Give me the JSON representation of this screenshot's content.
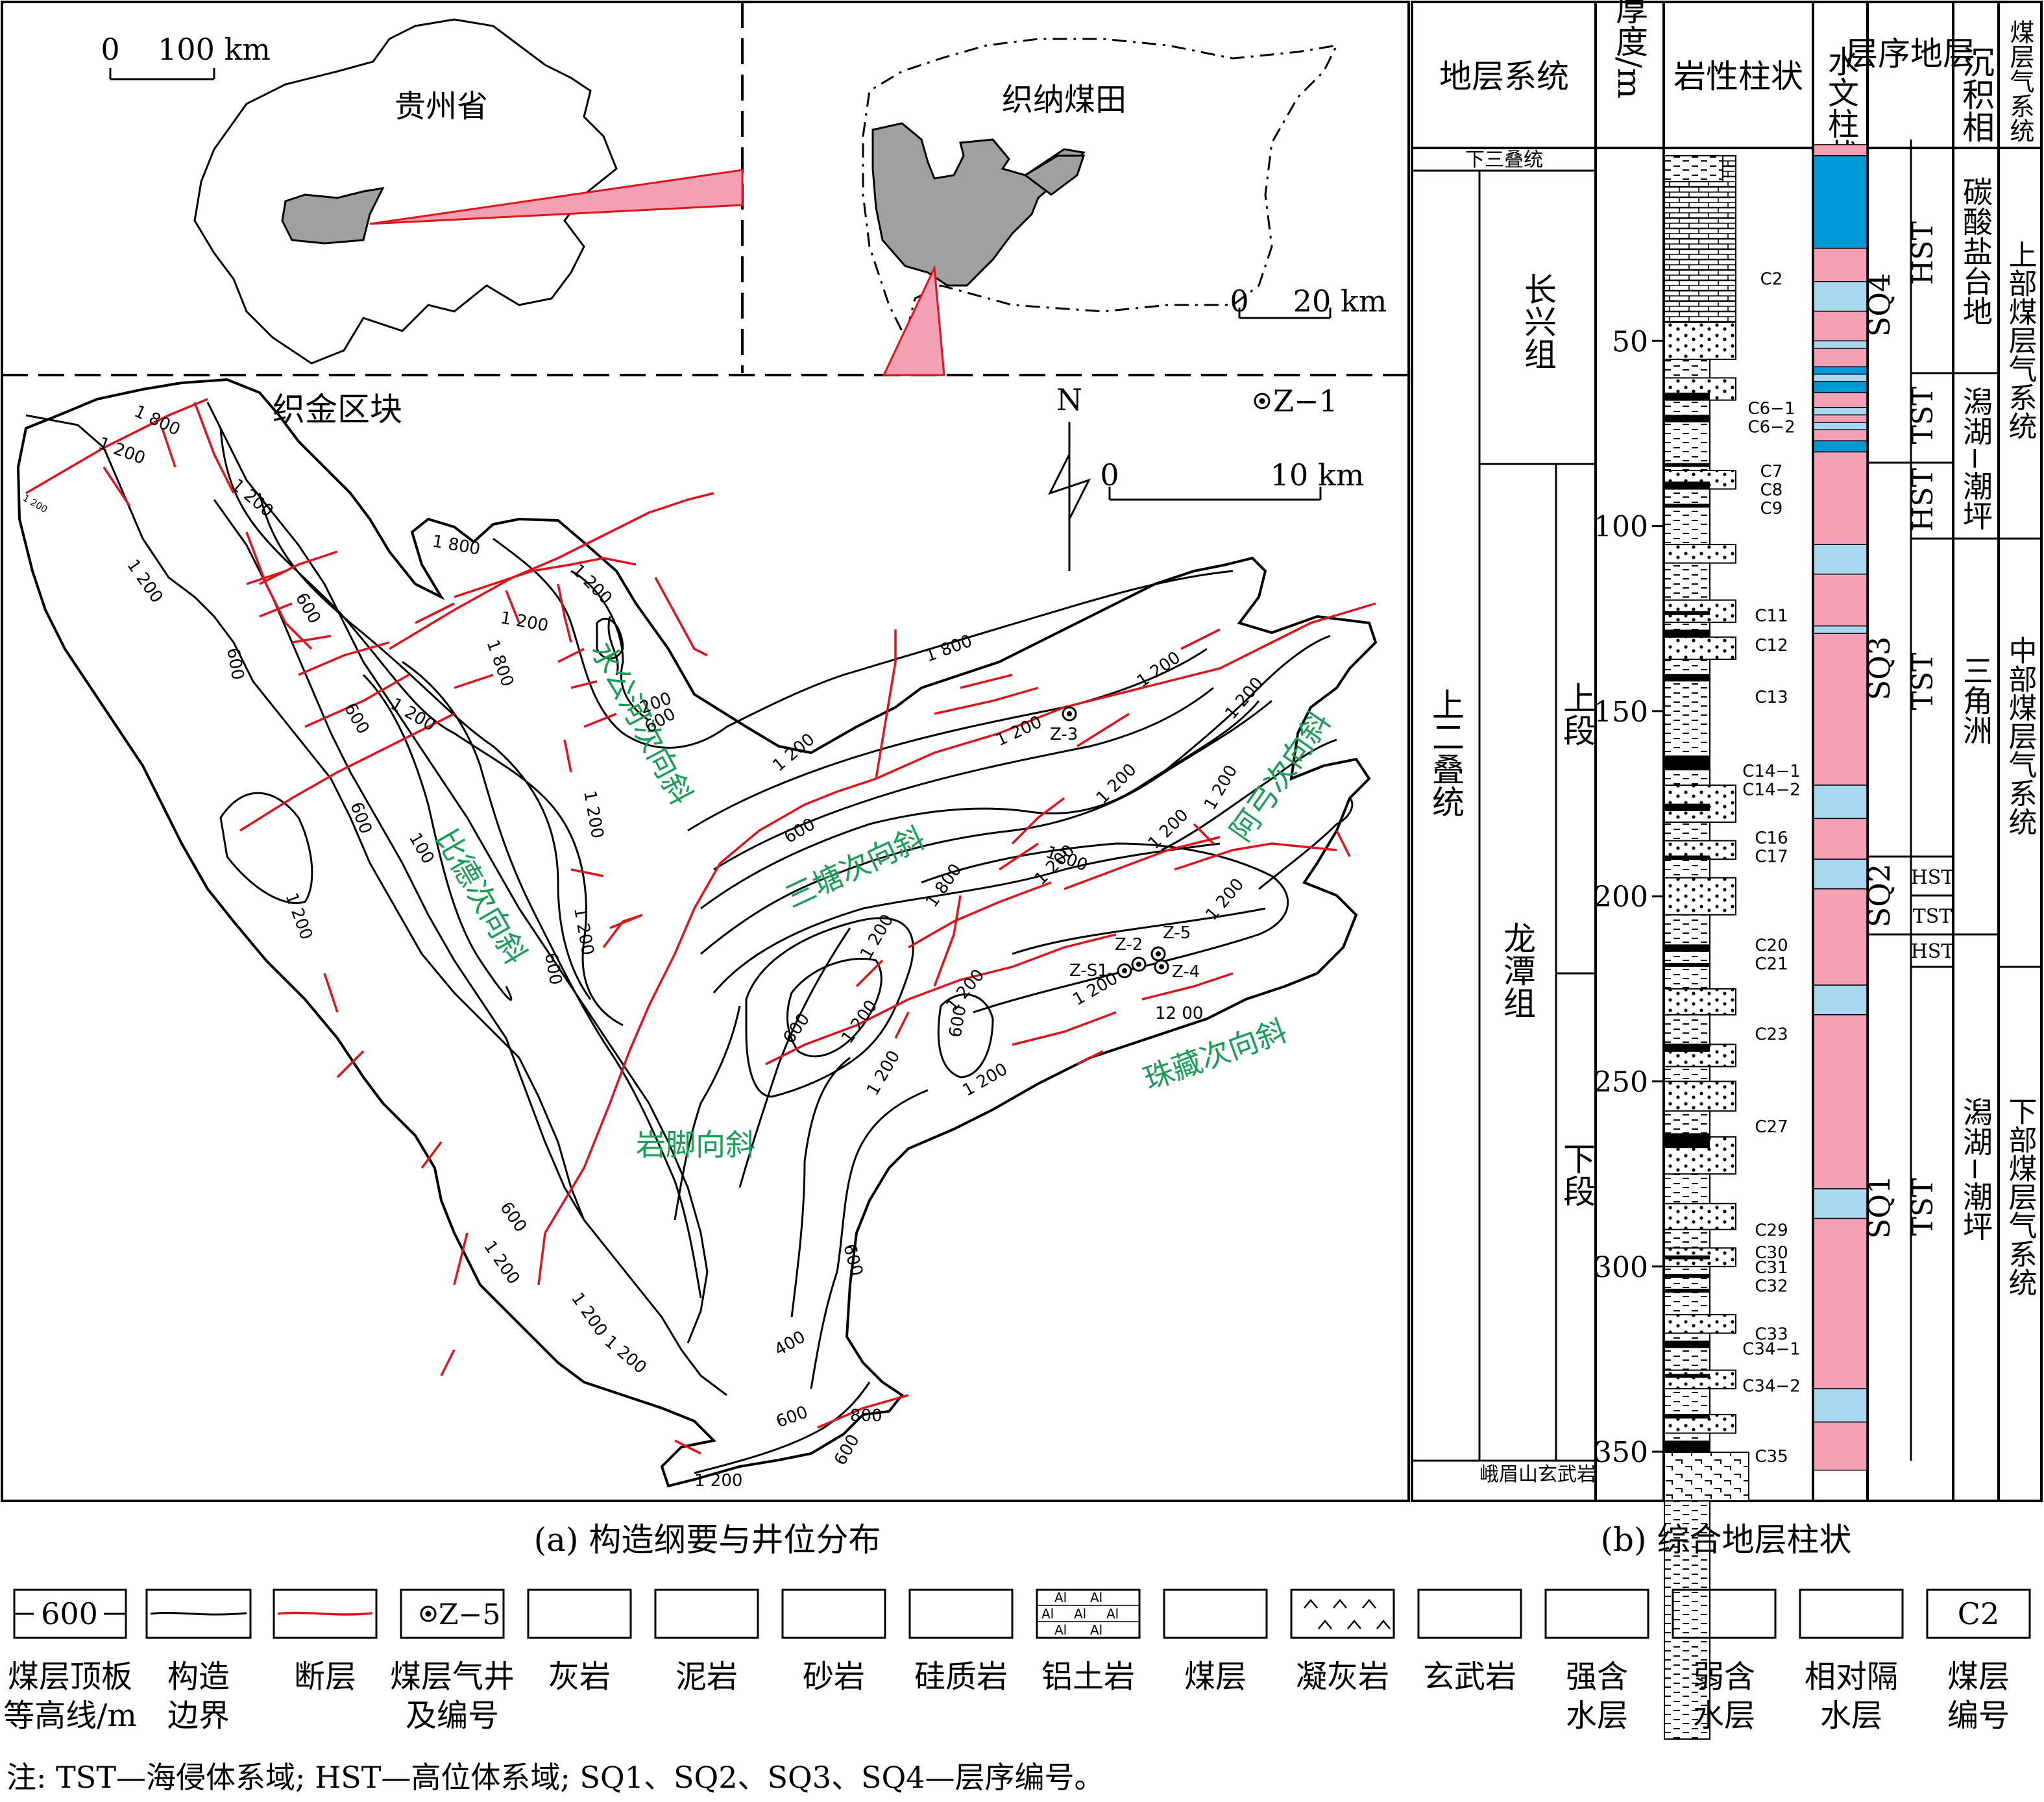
{
  "panel_a": {
    "inset_guizhou": {
      "scale_zero": "0",
      "scale_label": "100 km",
      "province": "贵州省"
    },
    "inset_zhina": {
      "name": "织纳煤田",
      "scale_zero": "0",
      "scale_label": "20 km"
    },
    "block_name": "织金区块",
    "north": "N",
    "legend_well": "Z−1",
    "scale_zero": "0",
    "scale_label": "10 km",
    "structures": [
      "比德次向斜",
      "水公河次向斜",
      "三塘次向斜",
      "阿弓次向斜",
      "珠藏次向斜",
      "岩脚向斜"
    ],
    "wells": [
      "Z-3",
      "Z-2",
      "Z-5",
      "Z-S1",
      "Z-4"
    ],
    "contours": [
      "1 800",
      "1 200",
      "1 200",
      "600",
      "600",
      "600",
      "1 200",
      "1 200",
      "1 800",
      "1 800",
      "1 200",
      "600",
      "1 200",
      "1 200",
      "1 200",
      "1 200",
      "1 800",
      "1 200",
      "1 200",
      "1 200",
      "600",
      "1 200",
      "1 200",
      "1 800",
      "1 200",
      "1200",
      "1 200",
      "1 200",
      "1 200",
      "1 200",
      "600",
      "1 200",
      "1 200",
      "1 200",
      "12 00",
      "1 200",
      "100",
      "600",
      "200",
      "600",
      "1 200",
      "600",
      "600",
      "1 200",
      "600",
      "400",
      "600",
      "800",
      "600",
      "1 200",
      "1 200",
      "1 200",
      "1 200"
    ],
    "caption": "(a) 构造纲要与井位分布"
  },
  "panel_b": {
    "headers": [
      "地层系统",
      "厚度/m",
      "岩性柱状",
      "水文柱状",
      "层序地层",
      "沉积相",
      "煤层气系统"
    ],
    "units": {
      "lower_triassic": "下三叠统",
      "upper_permian": "上二叠统",
      "changxing": "长兴组",
      "longtan": "龙潭组",
      "upper_member": "上段",
      "lower_member": "下段",
      "emeishan": "峨眉山玄武岩"
    },
    "depth_ticks": [
      "50",
      "100",
      "150",
      "200",
      "250",
      "300",
      "350"
    ],
    "coal_seams": [
      "C2",
      "C6−1",
      "C6−2",
      "C7",
      "C8",
      "C9",
      "C11",
      "C12",
      "C13",
      "C14−1",
      "C14−2",
      "C16",
      "C17",
      "C20",
      "C21",
      "C23",
      "C27",
      "C29",
      "C30",
      "C31",
      "C32",
      "C33",
      "C34−1",
      "C34−2",
      "C35"
    ],
    "sequences": [
      "SQ4",
      "SQ3",
      "SQ2",
      "SQ1"
    ],
    "systems_tracts": [
      "HST",
      "TST",
      "HST",
      "TST",
      "HST",
      "TST",
      "HST",
      "TST"
    ],
    "facies": [
      "碳酸盐台地",
      "潟湖−潮坪",
      "三角洲",
      "潟湖−潮坪"
    ],
    "cbm_systems": [
      "上部煤层气系统",
      "中部煤层气系统",
      "下部煤层气系统"
    ],
    "caption": "(b) 综合地层柱状"
  },
  "legend": {
    "contour_sample": "600",
    "well_sample": "Z−5",
    "seam_sample": "C2",
    "labels": [
      "煤层顶板等高线/m",
      "构造边界",
      "断层",
      "煤层气井及编号",
      "灰岩",
      "泥岩",
      "砂岩",
      "硅质岩",
      "铝土岩",
      "煤层",
      "凝灰岩",
      "玄武岩",
      "强含水层",
      "弱含水层",
      "相对隔水层",
      "煤层编号"
    ],
    "colors": {
      "strong_aquifer": "#0099d8",
      "weak_aquifer": "#a8d8f0",
      "aquitard": "#f4a0b4",
      "fault": "#e0131b",
      "annotation": "#1a9e55"
    }
  },
  "note": "注: TST—海侵体系域; HST—高位体系域; SQ1、SQ2、SQ3、SQ4—层序编号。"
}
